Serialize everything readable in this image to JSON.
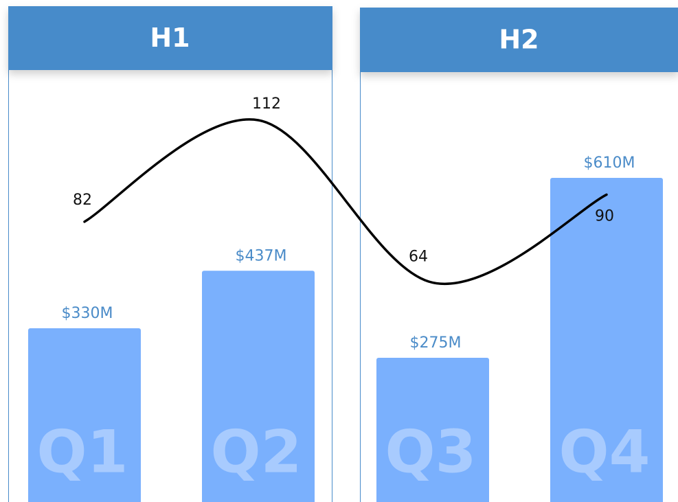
{
  "chart_data": {
    "type": "bar",
    "groups": [
      "H1",
      "H2"
    ],
    "categories": [
      "Q1",
      "Q2",
      "Q3",
      "Q4"
    ],
    "values": [
      330,
      437,
      275,
      610
    ],
    "value_labels": [
      "$330M",
      "$437M",
      "$275M",
      "$610M"
    ],
    "color": "#7ab0fd",
    "header_color": "#478bca",
    "line": {
      "type": "line",
      "values": [
        82,
        112,
        64,
        90
      ],
      "color": "#000000"
    }
  }
}
